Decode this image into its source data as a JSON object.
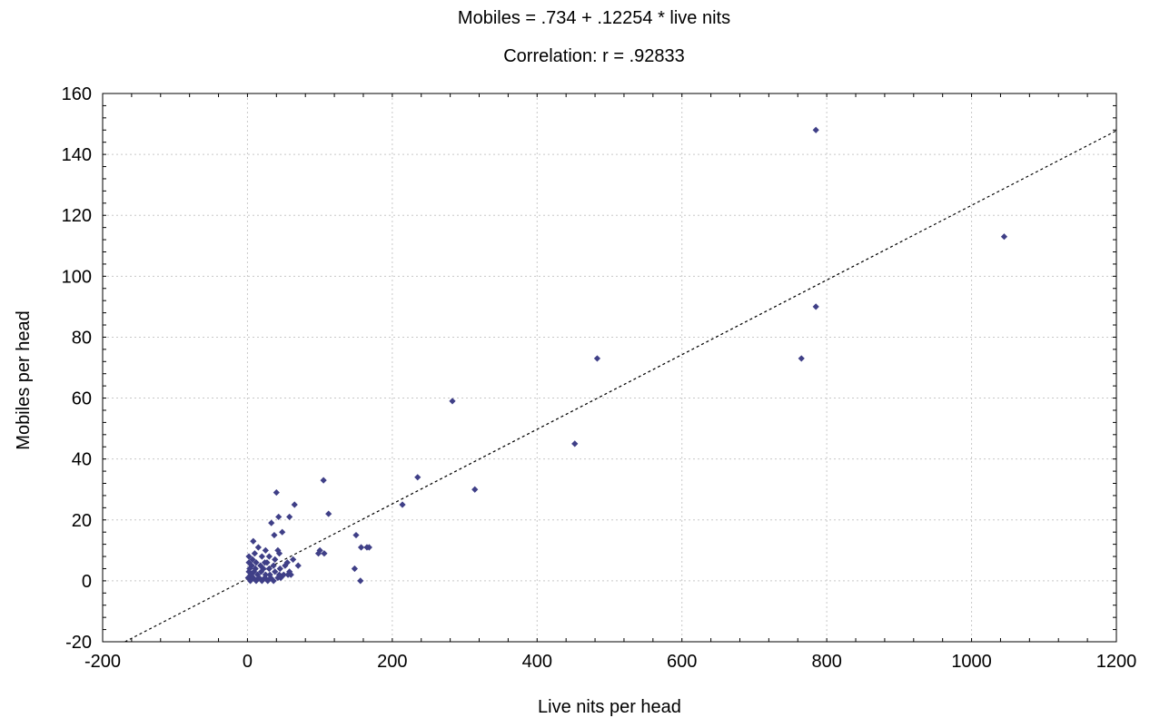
{
  "chart_data": {
    "type": "scatter",
    "title": "Mobiles = .734 + .12254 * live nits",
    "subtitle": "Correlation: r = .92833",
    "xlabel": "Live nits per head",
    "ylabel": "Mobiles per head",
    "xlim": [
      -200,
      1200
    ],
    "ylim": [
      -20,
      160
    ],
    "xticks": [
      -200,
      0,
      200,
      400,
      600,
      800,
      1000,
      1200
    ],
    "yticks": [
      -20,
      0,
      20,
      40,
      60,
      80,
      100,
      120,
      140,
      160
    ],
    "grid": true,
    "fit_line": {
      "intercept": 0.734,
      "slope": 0.12254
    },
    "marker_color": "#3f3f87",
    "points": [
      {
        "x": 785,
        "y": 148
      },
      {
        "x": 1045,
        "y": 113
      },
      {
        "x": 785,
        "y": 90
      },
      {
        "x": 765,
        "y": 73
      },
      {
        "x": 483,
        "y": 73
      },
      {
        "x": 452,
        "y": 45
      },
      {
        "x": 283,
        "y": 59
      },
      {
        "x": 314,
        "y": 30
      },
      {
        "x": 235,
        "y": 34
      },
      {
        "x": 214,
        "y": 25
      },
      {
        "x": 105,
        "y": 33
      },
      {
        "x": 112,
        "y": 22
      },
      {
        "x": 100,
        "y": 10
      },
      {
        "x": 106,
        "y": 9
      },
      {
        "x": 98,
        "y": 9
      },
      {
        "x": 150,
        "y": 15
      },
      {
        "x": 157,
        "y": 11
      },
      {
        "x": 165,
        "y": 11
      },
      {
        "x": 168,
        "y": 11
      },
      {
        "x": 148,
        "y": 4
      },
      {
        "x": 156,
        "y": 0
      },
      {
        "x": 40,
        "y": 29
      },
      {
        "x": 65,
        "y": 25
      },
      {
        "x": 43,
        "y": 21
      },
      {
        "x": 58,
        "y": 21
      },
      {
        "x": 33,
        "y": 19
      },
      {
        "x": 48,
        "y": 16
      },
      {
        "x": 37,
        "y": 15
      },
      {
        "x": 8,
        "y": 13
      },
      {
        "x": 15,
        "y": 11
      },
      {
        "x": 25,
        "y": 10
      },
      {
        "x": 42,
        "y": 10
      },
      {
        "x": 2,
        "y": 8
      },
      {
        "x": 10,
        "y": 9
      },
      {
        "x": 20,
        "y": 8
      },
      {
        "x": 30,
        "y": 8
      },
      {
        "x": 44,
        "y": 9
      },
      {
        "x": 38,
        "y": 7
      },
      {
        "x": 55,
        "y": 6
      },
      {
        "x": 63,
        "y": 7
      },
      {
        "x": 70,
        "y": 5
      },
      {
        "x": 2,
        "y": 6
      },
      {
        "x": 6,
        "y": 5
      },
      {
        "x": 12,
        "y": 6
      },
      {
        "x": 18,
        "y": 5
      },
      {
        "x": 24,
        "y": 6
      },
      {
        "x": 30,
        "y": 4
      },
      {
        "x": 36,
        "y": 5
      },
      {
        "x": 45,
        "y": 4
      },
      {
        "x": 52,
        "y": 5
      },
      {
        "x": 58,
        "y": 3
      },
      {
        "x": 2,
        "y": 3
      },
      {
        "x": 5,
        "y": 2
      },
      {
        "x": 9,
        "y": 3
      },
      {
        "x": 14,
        "y": 2
      },
      {
        "x": 19,
        "y": 3
      },
      {
        "x": 25,
        "y": 2
      },
      {
        "x": 31,
        "y": 2
      },
      {
        "x": 38,
        "y": 3
      },
      {
        "x": 44,
        "y": 2
      },
      {
        "x": 50,
        "y": 2
      },
      {
        "x": 56,
        "y": 2
      },
      {
        "x": 60,
        "y": 2
      },
      {
        "x": 1,
        "y": 1
      },
      {
        "x": 4,
        "y": 0
      },
      {
        "x": 8,
        "y": 1
      },
      {
        "x": 12,
        "y": 0
      },
      {
        "x": 16,
        "y": 1
      },
      {
        "x": 20,
        "y": 0
      },
      {
        "x": 24,
        "y": 1
      },
      {
        "x": 28,
        "y": 0
      },
      {
        "x": 32,
        "y": 1
      },
      {
        "x": 36,
        "y": 0
      },
      {
        "x": 42,
        "y": 1
      },
      {
        "x": 46,
        "y": 1
      },
      {
        "x": 3,
        "y": 4
      },
      {
        "x": 7,
        "y": 7
      },
      {
        "x": 11,
        "y": 4
      },
      {
        "x": 22,
        "y": 4
      },
      {
        "x": 27,
        "y": 6
      }
    ]
  }
}
